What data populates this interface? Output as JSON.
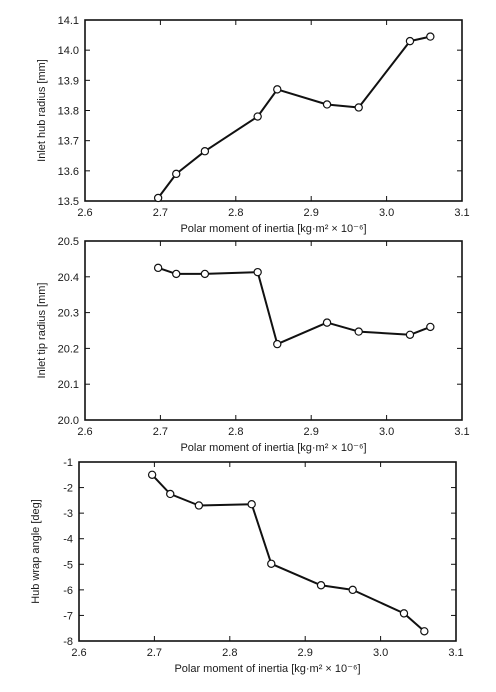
{
  "chart_data": [
    {
      "type": "line",
      "xlabel": "Polar moment of inertia [kg·m² × 10⁻⁶]",
      "ylabel": "Inlet hub radius [mm]",
      "xlim": [
        2.6,
        3.1
      ],
      "ylim": [
        13.5,
        14.1
      ],
      "x_ticks": [
        "2.6",
        "2.7",
        "2.8",
        "2.9",
        "3.0",
        "3.1"
      ],
      "y_ticks": [
        "13.5",
        "13.6",
        "13.7",
        "13.8",
        "13.9",
        "14.0",
        "14.1"
      ],
      "grid": false,
      "series": [
        {
          "x": [
            2.697,
            2.721,
            2.759,
            2.829,
            2.855,
            2.921,
            2.963,
            3.031,
            3.058
          ],
          "y": [
            13.51,
            13.59,
            13.665,
            13.78,
            13.87,
            13.82,
            13.81,
            14.03,
            14.045
          ]
        }
      ]
    },
    {
      "type": "line",
      "xlabel": "Polar moment of inertia [kg·m² × 10⁻⁶]",
      "ylabel": "Inlet tip radius [mm]",
      "xlim": [
        2.6,
        3.1
      ],
      "ylim": [
        20.0,
        20.5
      ],
      "x_ticks": [
        "2.6",
        "2.7",
        "2.8",
        "2.9",
        "3.0",
        "3.1"
      ],
      "y_ticks": [
        "20.0",
        "20.1",
        "20.2",
        "20.3",
        "20.4",
        "20.5"
      ],
      "grid": false,
      "series": [
        {
          "x": [
            2.697,
            2.721,
            2.759,
            2.829,
            2.855,
            2.921,
            2.963,
            3.031,
            3.058
          ],
          "y": [
            20.425,
            20.408,
            20.408,
            20.413,
            20.212,
            20.272,
            20.247,
            20.238,
            20.26
          ]
        }
      ]
    },
    {
      "type": "line",
      "xlabel": "Polar moment of inertia [kg·m² × 10⁻⁶]",
      "ylabel": "Hub wrap angle [deg]",
      "xlim": [
        2.6,
        3.1
      ],
      "ylim": [
        -8,
        -1
      ],
      "x_ticks": [
        "2.6",
        "2.7",
        "2.8",
        "2.9",
        "3.0",
        "3.1"
      ],
      "y_ticks": [
        "-1",
        "-2",
        "-3",
        "-4",
        "-5",
        "-6",
        "-7",
        "-8"
      ],
      "grid": false,
      "series": [
        {
          "x": [
            2.697,
            2.721,
            2.759,
            2.829,
            2.855,
            2.921,
            2.963,
            3.031,
            3.058
          ],
          "y": [
            -1.5,
            -2.25,
            -2.7,
            -2.65,
            -4.98,
            -5.82,
            -6.0,
            -6.92,
            -7.62
          ]
        }
      ]
    }
  ]
}
